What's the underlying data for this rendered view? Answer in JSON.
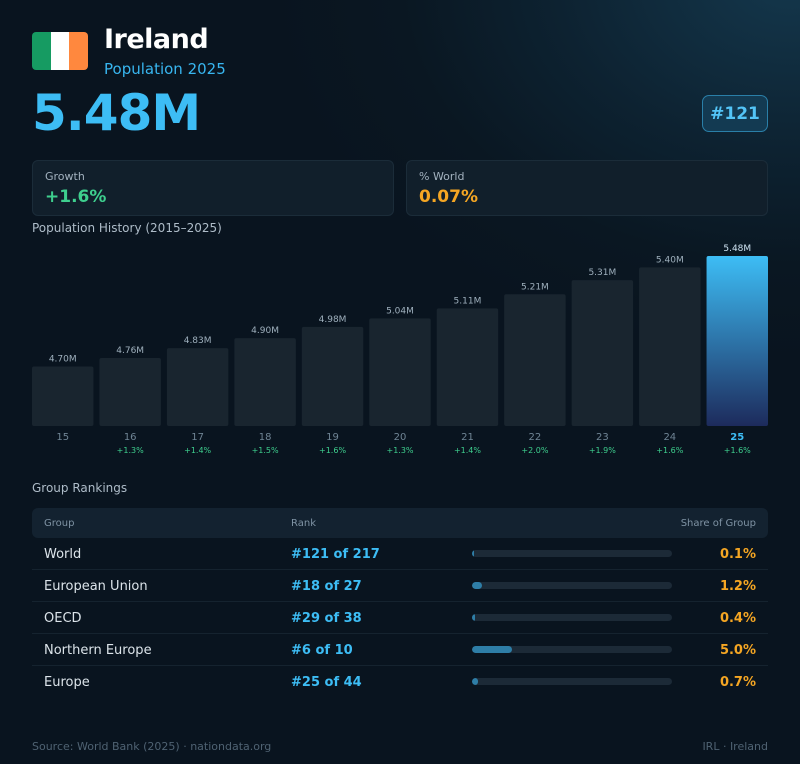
{
  "header": {
    "country": "Ireland",
    "subtitle": "Population 2025",
    "population": "5.48M",
    "rank_badge": "#121",
    "flag_colors": [
      "#169b62",
      "#ffffff",
      "#ff883e"
    ]
  },
  "stats": {
    "growth_label": "Growth",
    "growth_value": "+1.6%",
    "growth_color": "#3ecf8e",
    "world_label": "% World",
    "world_value": "0.07%",
    "world_color": "#f5a623"
  },
  "chart_data": {
    "type": "bar",
    "title": "Population History (2015–2025)",
    "categories": [
      "15",
      "16",
      "17",
      "18",
      "19",
      "20",
      "21",
      "22",
      "23",
      "24",
      "25"
    ],
    "values": [
      4.7,
      4.76,
      4.83,
      4.9,
      4.98,
      5.04,
      5.11,
      5.21,
      5.31,
      5.4,
      5.48
    ],
    "value_labels": [
      "4.70M",
      "4.76M",
      "4.83M",
      "4.90M",
      "4.98M",
      "5.04M",
      "5.11M",
      "5.21M",
      "5.31M",
      "5.40M",
      "5.48M"
    ],
    "growth_labels": [
      "",
      "+1.3%",
      "+1.4%",
      "+1.5%",
      "+1.6%",
      "+1.3%",
      "+1.4%",
      "+2.0%",
      "+1.9%",
      "+1.6%",
      "+1.6%"
    ],
    "highlight_index": 10,
    "bar_color": "#19252f",
    "highlight_gradient": [
      "#3dbdf5",
      "#1d2b5c"
    ],
    "ylim": [
      0,
      5.48
    ],
    "grid": false
  },
  "rankings": {
    "title": "Group Rankings",
    "headers": {
      "group": "Group",
      "rank": "Rank",
      "share": "Share of Group"
    },
    "rows": [
      {
        "group": "World",
        "rank": "#121 of 217",
        "share": "0.1%",
        "share_value": 0.1
      },
      {
        "group": "European Union",
        "rank": "#18 of 27",
        "share": "1.2%",
        "share_value": 1.2
      },
      {
        "group": "OECD",
        "rank": "#29 of 38",
        "share": "0.4%",
        "share_value": 0.4
      },
      {
        "group": "Northern Europe",
        "rank": "#6 of 10",
        "share": "5.0%",
        "share_value": 5.0
      },
      {
        "group": "Europe",
        "rank": "#25 of 44",
        "share": "0.7%",
        "share_value": 0.7
      }
    ]
  },
  "footer": {
    "source": "Source: World Bank (2025) · nationdata.org",
    "code": "IRL · Ireland"
  }
}
